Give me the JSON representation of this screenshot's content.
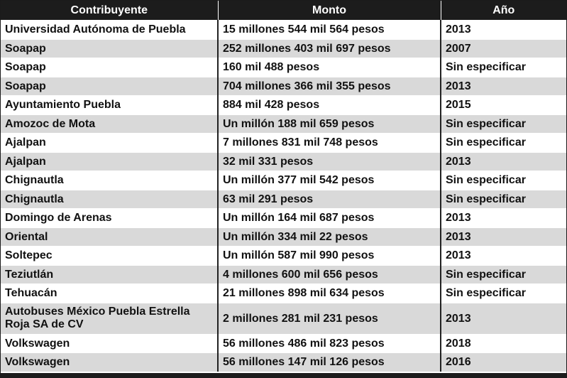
{
  "table": {
    "headers": [
      "Contribuyente",
      "Monto",
      "Año"
    ],
    "rows": [
      [
        "Universidad Autónoma de Puebla",
        "15 millones 544 mil 564 pesos",
        "2013"
      ],
      [
        "Soapap",
        "252 millones 403 mil 697 pesos",
        "2007"
      ],
      [
        "Soapap",
        "160 mil 488 pesos",
        "Sin especificar"
      ],
      [
        "Soapap",
        "704 millones 366 mil 355 pesos",
        "2013"
      ],
      [
        "Ayuntamiento Puebla",
        "884 mil 428 pesos",
        "2015"
      ],
      [
        "Amozoc de Mota",
        "Un millón 188 mil 659 pesos",
        "Sin especificar"
      ],
      [
        "Ajalpan",
        "7 millones 831 mil 748 pesos",
        "Sin especificar"
      ],
      [
        "Ajalpan",
        "32 mil 331 pesos",
        "2013"
      ],
      [
        "Chignautla",
        "Un millón 377 mil 542 pesos",
        "Sin especificar"
      ],
      [
        "Chignautla",
        "63 mil 291 pesos",
        "Sin especificar"
      ],
      [
        "Domingo de Arenas",
        "Un millón 164 mil 687 pesos",
        "2013"
      ],
      [
        "Oriental",
        "Un millón 334 mil 22 pesos",
        "2013"
      ],
      [
        "Soltepec",
        "Un millón 587 mil 990 pesos",
        "2013"
      ],
      [
        "Teziutlán",
        "4 millones 600 mil 656 pesos",
        "Sin especificar"
      ],
      [
        "Tehuacán",
        "21 millones 898 mil 634 pesos",
        "Sin especificar"
      ],
      [
        "Autobuses México Puebla Estrella Roja SA de CV",
        "2 millones 281 mil 231 pesos",
        "2013"
      ],
      [
        "Volkswagen",
        "56 millones 486 mil 823 pesos",
        "2018"
      ],
      [
        "Volkswagen",
        "56 millones 147 mil 126 pesos",
        "2016"
      ]
    ]
  },
  "colors": {
    "header_bg": "#1c1c1c",
    "header_text": "#ffffff",
    "row_light": "#ffffff",
    "row_shaded": "#d9d9d9",
    "text": "#111111"
  }
}
